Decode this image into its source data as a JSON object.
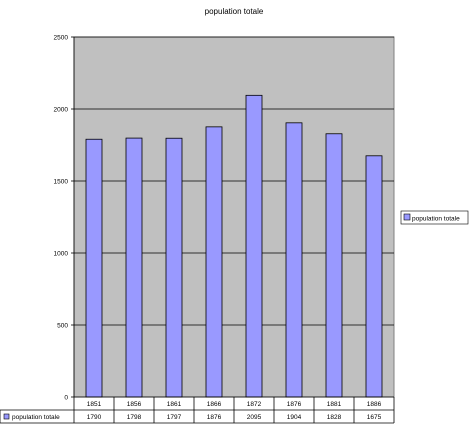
{
  "chart_data": {
    "type": "bar",
    "title": "population totale",
    "categories": [
      "1851",
      "1856",
      "1861",
      "1866",
      "1872",
      "1876",
      "1881",
      "1886"
    ],
    "series": [
      {
        "name": "population totale",
        "values": [
          1790,
          1798,
          1797,
          1876,
          2095,
          1904,
          1828,
          1675
        ]
      }
    ],
    "value_labels": [
      "1790",
      "1798",
      "1797",
      "1876",
      "2095",
      "1904",
      "1828",
      "1675"
    ],
    "ylim": [
      0,
      2500
    ],
    "yticks": [
      0,
      500,
      1000,
      1500,
      2000,
      2500
    ],
    "ytick_labels": [
      "0",
      "500",
      "1000",
      "1500",
      "2000",
      "2500"
    ],
    "grid": true,
    "legend_placement": "right",
    "data_table": true,
    "colors": {
      "plot_bg": "#c0c0c0",
      "bar": "#9999ff",
      "bar_edge": "#000000"
    }
  }
}
